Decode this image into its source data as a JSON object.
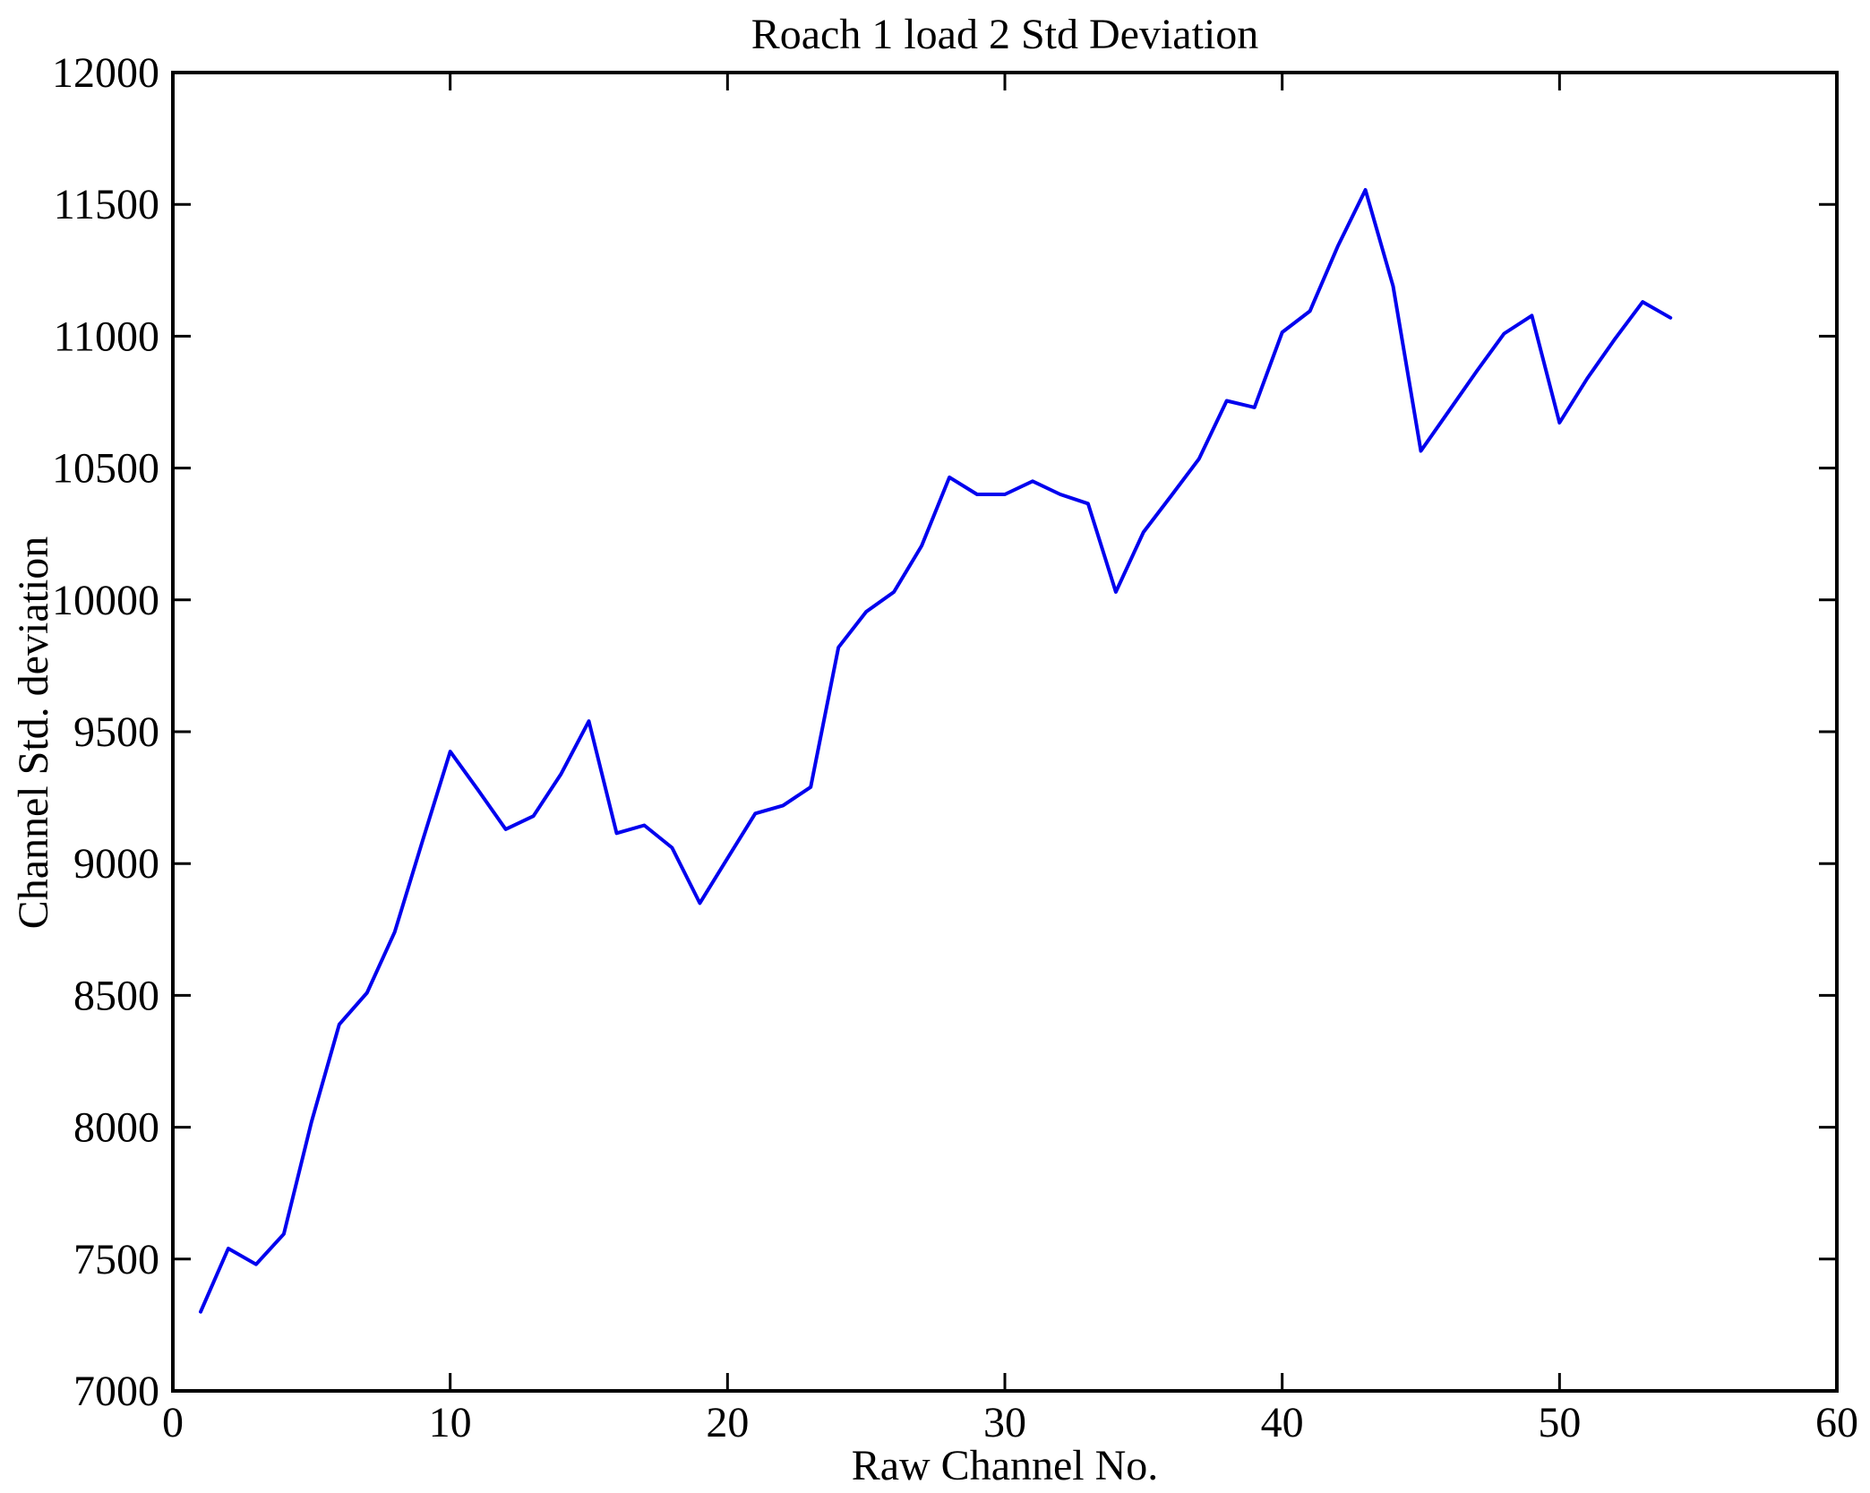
{
  "chart_data": {
    "type": "line",
    "title": "Roach 1 load 2 Std Deviation",
    "xlabel": "Raw Channel No.",
    "ylabel": "Channel Std. deviation",
    "xlim": [
      0,
      60
    ],
    "ylim": [
      7000,
      12000
    ],
    "xticks": [
      0,
      10,
      20,
      30,
      40,
      50,
      60
    ],
    "yticks": [
      7000,
      7500,
      8000,
      8500,
      9000,
      9500,
      10000,
      10500,
      11000,
      11500,
      12000
    ],
    "grid": false,
    "legend": "none",
    "line_color": "#0000EE",
    "axis_color": "#000000",
    "background_color": "#FFFFFF",
    "x": [
      1,
      2,
      3,
      4,
      5,
      6,
      7,
      8,
      9,
      10,
      11,
      12,
      13,
      14,
      15,
      16,
      17,
      18,
      19,
      20,
      21,
      22,
      23,
      24,
      25,
      26,
      27,
      28,
      29,
      30,
      31,
      32,
      33,
      34,
      35,
      36,
      37,
      38,
      39,
      40,
      41,
      42,
      43,
      44,
      45,
      46,
      47,
      48,
      49,
      50,
      51,
      52,
      53,
      54
    ],
    "y": [
      7300,
      7540,
      7480,
      7595,
      8020,
      8390,
      8510,
      8740,
      9085,
      9425,
      9280,
      9130,
      9180,
      9340,
      9540,
      9115,
      9145,
      9060,
      8850,
      9020,
      9190,
      9220,
      9290,
      9820,
      9955,
      10030,
      10205,
      10465,
      10400,
      10400,
      10450,
      10400,
      10365,
      10030,
      10257,
      10395,
      10535,
      10755,
      10730,
      11015,
      11095,
      11340,
      11555,
      11190,
      10565,
      10715,
      10865,
      11010,
      11078,
      10672,
      10840,
      10990,
      11130,
      11070
    ]
  }
}
